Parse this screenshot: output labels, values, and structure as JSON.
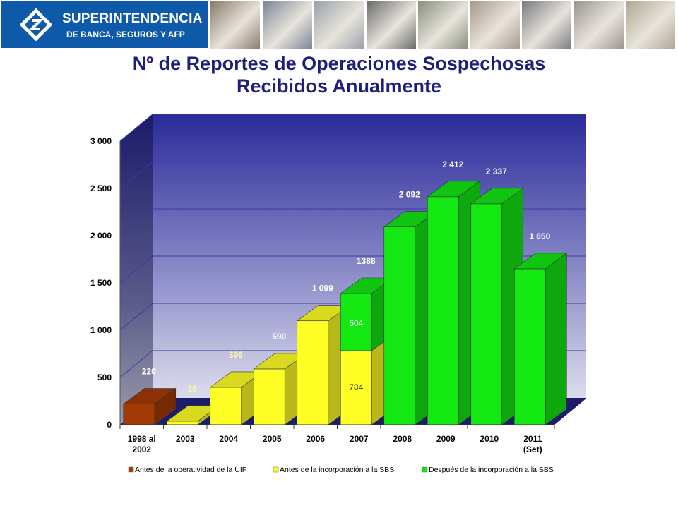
{
  "header": {
    "logo_line1": "SUPERINTENDENCIA",
    "logo_line2": "DE BANCA, SEGUROS Y AFP",
    "brand_color": "#0f5aa8",
    "photos": [
      "credit-card-photo",
      "building-photo",
      "keyboard-enter-photo",
      "businessman-photo",
      "money-photo",
      "card-terminal-photo",
      "handshake-photo",
      "meeting-photo",
      "signing-photo"
    ]
  },
  "title_line1": "Nº de Reportes de Operaciones Sospechosas",
  "title_line2": "Recibidos Anualmente",
  "chart_data": {
    "type": "bar",
    "stacked": true,
    "three_d": true,
    "categories": [
      "1998 al\n2002",
      "2003",
      "2004",
      "2005",
      "2006",
      "2007",
      "2008",
      "2009",
      "2010",
      "2011\n(Set)"
    ],
    "series": [
      {
        "name": "Antes de la operatividad de la UIF",
        "color": "#a33a06",
        "values": [
          220,
          0,
          0,
          0,
          0,
          0,
          0,
          0,
          0,
          0
        ]
      },
      {
        "name": "Antes de la incorporación a la SBS",
        "color": "#ffff26",
        "values": [
          0,
          38,
          396,
          590,
          1099,
          784,
          0,
          0,
          0,
          0
        ]
      },
      {
        "name": "Después de la incorporación a la SBS",
        "color": "#13e813",
        "values": [
          0,
          0,
          0,
          0,
          0,
          604,
          2092,
          2412,
          2337,
          1650
        ]
      }
    ],
    "top_labels": [
      "220",
      "38",
      "396",
      "590",
      "1 099",
      "1388",
      "2 092",
      "2 412",
      "2 337",
      "1 650"
    ],
    "segment_labels": [
      "784",
      "604"
    ],
    "ylim": [
      0,
      3000
    ],
    "yticks": [
      0,
      500,
      1000,
      1500,
      2000,
      2500,
      3000
    ],
    "ytick_labels": [
      "0",
      "500",
      "1 000",
      "1 500",
      "2 000",
      "2 500",
      "3 000"
    ],
    "grid": true,
    "legend_position": "bottom"
  }
}
